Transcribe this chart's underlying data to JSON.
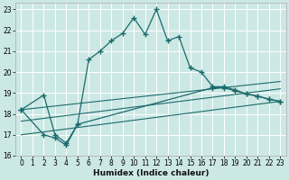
{
  "title": "",
  "xlabel": "Humidex (Indice chaleur)",
  "bg_color": "#cce8e5",
  "grid_color": "#ffffff",
  "line_color": "#1a6b6b",
  "xlim": [
    -0.5,
    23.5
  ],
  "ylim": [
    16,
    23.3
  ],
  "xtick_labels": [
    "0",
    "1",
    "2",
    "3",
    "4",
    "5",
    "6",
    "7",
    "8",
    "9",
    "10",
    "11",
    "12",
    "13",
    "14",
    "15",
    "16",
    "17",
    "18",
    "19",
    "20",
    "21",
    "22",
    "23"
  ],
  "xtick_vals": [
    0,
    1,
    2,
    3,
    4,
    5,
    6,
    7,
    8,
    9,
    10,
    11,
    12,
    13,
    14,
    15,
    16,
    17,
    18,
    19,
    20,
    21,
    22,
    23
  ],
  "ytick_vals": [
    16,
    17,
    18,
    19,
    20,
    21,
    22,
    23
  ],
  "series1_x": [
    0,
    2,
    3,
    4,
    5,
    6,
    7,
    8,
    9,
    10,
    11,
    12,
    13,
    14,
    15,
    16,
    17,
    18,
    19,
    20,
    21,
    22,
    23
  ],
  "series1_y": [
    18.2,
    18.9,
    17.0,
    16.6,
    17.5,
    20.6,
    21.0,
    21.5,
    21.85,
    22.6,
    21.8,
    23.0,
    21.5,
    21.7,
    20.2,
    20.0,
    19.3,
    19.3,
    19.15,
    18.95,
    18.85,
    18.7,
    18.6
  ],
  "series2_x": [
    0,
    2,
    3,
    4,
    5,
    17,
    18,
    19,
    20,
    21,
    22,
    23
  ],
  "series2_y": [
    18.2,
    17.0,
    16.85,
    16.5,
    17.5,
    19.25,
    19.25,
    19.1,
    18.95,
    18.85,
    18.7,
    18.6
  ],
  "line1_x": [
    0,
    23
  ],
  "line1_y": [
    18.2,
    19.55
  ],
  "line2_x": [
    0,
    23
  ],
  "line2_y": [
    17.65,
    19.2
  ],
  "line3_x": [
    0,
    23
  ],
  "line3_y": [
    17.0,
    18.6
  ]
}
